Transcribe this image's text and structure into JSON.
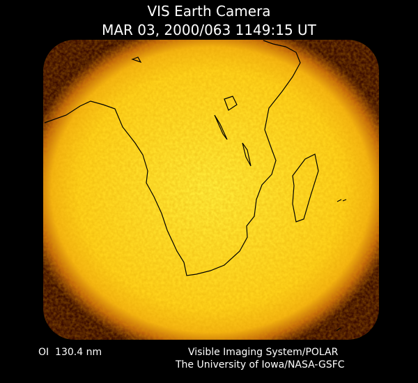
{
  "header": {
    "title": "VIS Earth Camera",
    "timestamp": "MAR 03, 2000/063 1149:15 UT"
  },
  "footer": {
    "wavelength": "OI  130.4 nm",
    "credit_line_1": "Visible Imaging System/POLAR",
    "credit_line_2": "The University of Iowa/NASA-GSFC"
  }
}
